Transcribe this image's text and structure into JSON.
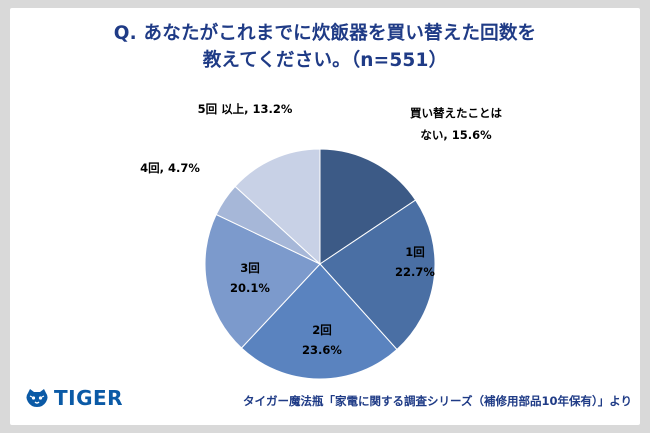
{
  "header": {
    "title_line1": "Q. あなたがこれまでに炊飯器を買い替えた回数を",
    "title_line2": "教えてください。（n=551）"
  },
  "footer": {
    "brand": "TIGER",
    "source": "タイガー魔法瓶「家電に関する調査シリーズ（補修用部品10年保有）」より"
  },
  "colors": {
    "title": "#1f3b86",
    "background": "#d9d9d9",
    "slices": [
      "#3c5a86",
      "#4a6fa4",
      "#5a83bf",
      "#7c9acc",
      "#a6b7d8",
      "#c8d1e6"
    ]
  },
  "chart_data": {
    "type": "pie",
    "title": "Q. あなたがこれまでに炊飯器を買い替えた回数を教えてください。（n=551）",
    "slices": [
      {
        "label": "買い替えたことはない",
        "value": 15.6,
        "label_text_1": "買い替えたことは",
        "label_text_2": "ない, 15.6%"
      },
      {
        "label": "1回",
        "value": 22.7,
        "label_text_1": "1回",
        "label_text_2": "22.7%"
      },
      {
        "label": "2回",
        "value": 23.6,
        "label_text_1": "2回",
        "label_text_2": "23.6%"
      },
      {
        "label": "3回",
        "value": 20.1,
        "label_text_1": "3回",
        "label_text_2": "20.1%"
      },
      {
        "label": "4回",
        "value": 4.7,
        "label_text_1": "4回, 4.7%",
        "label_text_2": ""
      },
      {
        "label": "5回以上",
        "value": 13.2,
        "label_text_1": "5回 以上, 13.2%",
        "label_text_2": ""
      }
    ],
    "start_angle": "12 o'clock",
    "direction": "clockwise"
  }
}
